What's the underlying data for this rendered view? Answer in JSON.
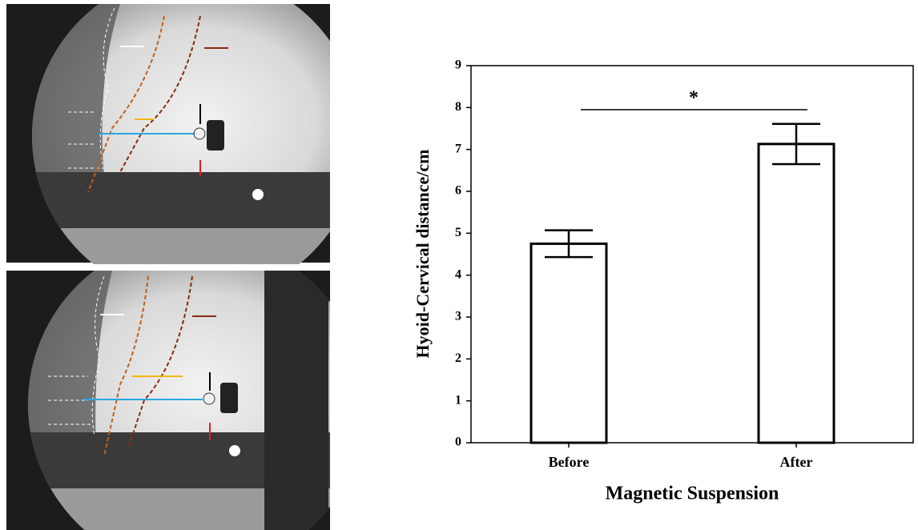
{
  "chart_data": {
    "type": "bar",
    "ylabel": "Hyoid-Cervical distance/cm",
    "xlabel": "Magnetic Suspension",
    "categories": [
      "Before",
      "After"
    ],
    "values": [
      4.75,
      7.13
    ],
    "errors": [
      0.32,
      0.48
    ],
    "color": "#ffffff",
    "ylim": [
      0,
      9
    ],
    "yticks": [
      0,
      1,
      2,
      3,
      4,
      5,
      6,
      7,
      8,
      9
    ],
    "significance": "*"
  }
}
